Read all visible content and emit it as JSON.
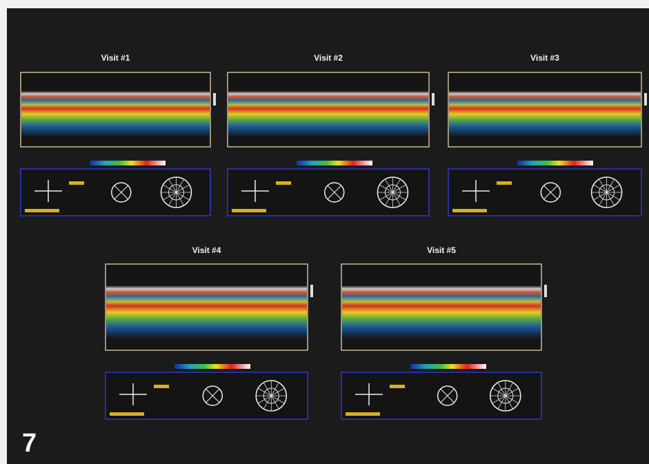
{
  "figure": {
    "label": "7",
    "panels": [
      {
        "title": "Visit #1"
      },
      {
        "title": "Visit #2"
      },
      {
        "title": "Visit #3"
      },
      {
        "title": "Visit #4"
      },
      {
        "title": "Visit #5"
      }
    ]
  }
}
